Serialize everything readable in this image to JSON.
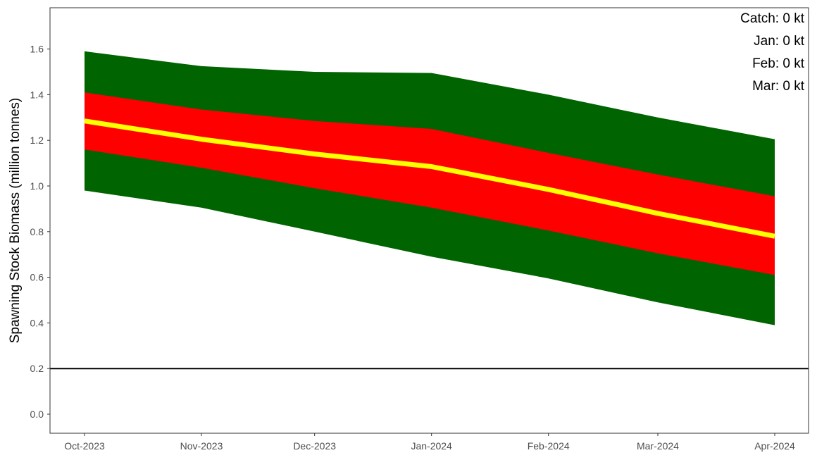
{
  "chart_data": {
    "type": "area",
    "x": [
      "Oct-2023",
      "Nov-2023",
      "Dec-2023",
      "Jan-2024",
      "Feb-2024",
      "Mar-2024",
      "Apr-2024"
    ],
    "x_dates": [
      "2023-10-01",
      "2023-11-01",
      "2023-12-01",
      "2024-01-01",
      "2024-02-01",
      "2024-03-01",
      "2024-04-01"
    ],
    "ylabel": "Spawning Stock Biomass (million tonnes)",
    "xlabel": "",
    "ylim": [
      -0.09,
      1.78
    ],
    "yticks": [
      "0.0",
      "0.2",
      "0.4",
      "0.6",
      "0.8",
      "1.0",
      "1.2",
      "1.4",
      "1.6"
    ],
    "grid": false,
    "bands": [
      {
        "color": "#006400",
        "lower": [
          0.98,
          0.905,
          0.8,
          0.69,
          0.595,
          0.49,
          0.39
        ],
        "upper": [
          1.59,
          1.525,
          1.5,
          1.495,
          1.4,
          1.3,
          1.205
        ]
      },
      {
        "color": "#ff0000",
        "lower": [
          1.16,
          1.08,
          0.99,
          0.905,
          0.805,
          0.705,
          0.61
        ],
        "upper": [
          1.41,
          1.335,
          1.285,
          1.25,
          1.145,
          1.05,
          0.955
        ]
      }
    ],
    "median": {
      "color": "#ffff00",
      "values": [
        1.285,
        1.205,
        1.14,
        1.085,
        0.985,
        0.88,
        0.78
      ]
    },
    "reference_line": {
      "y": 0.2,
      "color": "#000000"
    },
    "annotations": [
      "Catch: 0 kt",
      "Jan: 0 kt",
      "Feb: 0 kt",
      "Mar: 0 kt"
    ]
  }
}
